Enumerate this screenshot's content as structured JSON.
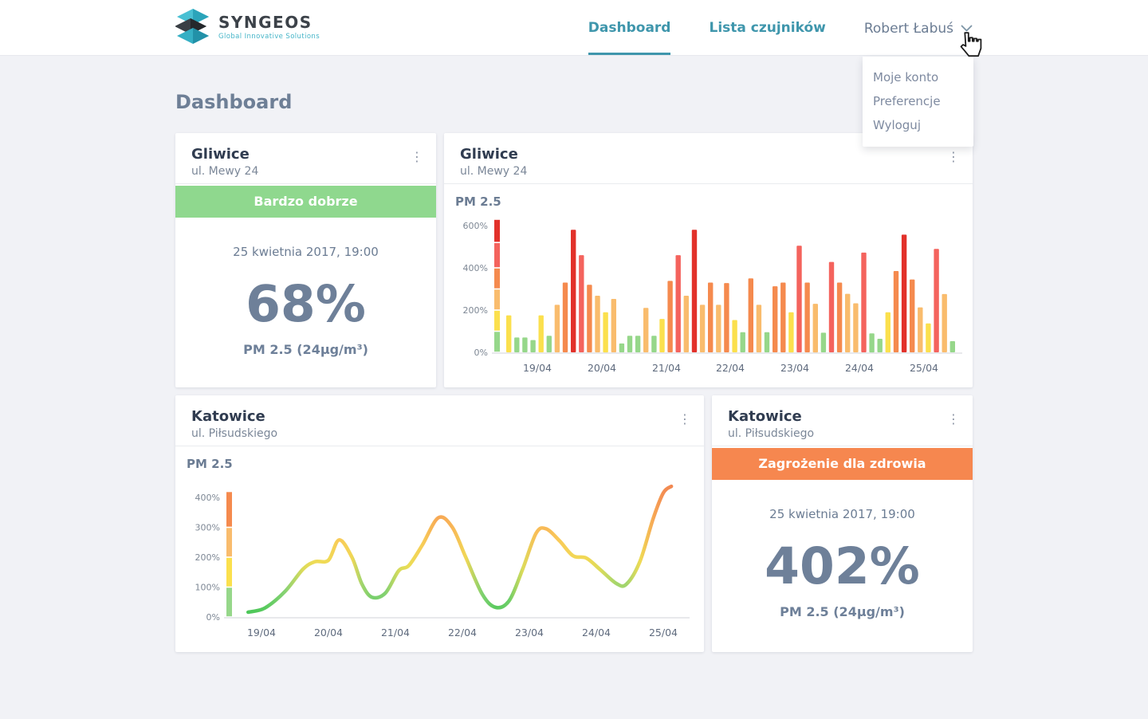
{
  "brand": {
    "name": "SYNGEOS",
    "tagline": "Global Innovative Solutions"
  },
  "nav": {
    "items": [
      {
        "label": "Dashboard",
        "active": true
      },
      {
        "label": "Lista czujników",
        "active": false
      }
    ],
    "user": {
      "name": "Robert Łabuś"
    },
    "user_menu": [
      "Moje konto",
      "Preferencje",
      "Wyloguj"
    ]
  },
  "page": {
    "title": "Dashboard"
  },
  "colors": {
    "accent_teal": "#3f96ac",
    "badge_good": "#8fd88e",
    "badge_danger": "#f6874f",
    "scale": {
      "green": "#96d78a",
      "yellow": "#fbe04d",
      "amber": "#f9bc6d",
      "orange": "#f58a4e",
      "salmon": "#f4635d",
      "red": "#e2312a"
    },
    "line_value_gradient": [
      [
        0,
        "#3fc553"
      ],
      [
        90,
        "#8bd375"
      ],
      [
        175,
        "#eedd54"
      ],
      [
        255,
        "#f9cb59"
      ],
      [
        335,
        "#f7a655"
      ],
      [
        437,
        "#f28851"
      ]
    ]
  },
  "cards": {
    "summary1": {
      "city": "Gliwice",
      "street": "ul. Mewy 24",
      "status": "Bardzo dobrze",
      "status_level": "good",
      "date": "25 kwietnia 2017, 19:00",
      "value": "68%",
      "metric": "PM 2.5 (24µg/m³)"
    },
    "bar_card": {
      "city": "Gliwice",
      "street": "ul. Mewy 24",
      "metric_label": "PM 2.5"
    },
    "line_card": {
      "city": "Katowice",
      "street": "ul. Piłsudskiego",
      "metric_label": "PM 2.5"
    },
    "summary2": {
      "city": "Katowice",
      "street": "ul. Piłsudskiego",
      "status": "Zagrożenie dla zdrowia",
      "status_level": "danger",
      "date": "25 kwietnia 2017, 19:00",
      "value": "402%",
      "metric": "PM 2.5 (24µg/m³)"
    }
  },
  "chart_data": [
    {
      "type": "bar",
      "title": "PM 2.5",
      "location": "Gliwice, ul. Mewy 24",
      "unit": "% of norm",
      "ylim": [
        0,
        630
      ],
      "yticks": [
        0,
        200,
        400,
        600
      ],
      "grid": false,
      "x_dates": [
        "19/04",
        "20/04",
        "21/04",
        "22/04",
        "23/04",
        "24/04",
        "25/04"
      ],
      "thresholds": [
        100,
        200,
        300,
        400,
        520
      ],
      "threshold_colors": [
        "green",
        "yellow",
        "amber",
        "orange",
        "salmon",
        "red"
      ],
      "values_by_day": [
        [
          175,
          70,
          70,
          58,
          175,
          78,
          225,
          330
        ],
        [
          580,
          460,
          320,
          268,
          190,
          253,
          42,
          78
        ],
        [
          78,
          210,
          78,
          158,
          338,
          460,
          268,
          580
        ],
        [
          225,
          330,
          225,
          328,
          153,
          95,
          350,
          225
        ],
        [
          95,
          313,
          330,
          190,
          505,
          330,
          230,
          93
        ],
        [
          428,
          330,
          277,
          232,
          472,
          90,
          64,
          190
        ],
        [
          385,
          557,
          345,
          213,
          137,
          490,
          276,
          53
        ]
      ]
    },
    {
      "type": "line",
      "title": "PM 2.5",
      "location": "Katowice, ul. Piłsudskiego",
      "unit": "% of norm",
      "ylim": [
        0,
        420
      ],
      "yticks": [
        0,
        100,
        200,
        300,
        400
      ],
      "grid": false,
      "x_dates": [
        "19/04",
        "20/04",
        "21/04",
        "22/04",
        "23/04",
        "24/04",
        "25/04"
      ],
      "thresholds": [
        100,
        200,
        300
      ],
      "threshold_colors": [
        "green",
        "yellow",
        "amber",
        "orange"
      ],
      "points": [
        [
          -0.2,
          16
        ],
        [
          0.05,
          30
        ],
        [
          0.35,
          85
        ],
        [
          0.62,
          160
        ],
        [
          0.8,
          185
        ],
        [
          1.0,
          190
        ],
        [
          1.16,
          258
        ],
        [
          1.35,
          200
        ],
        [
          1.5,
          110
        ],
        [
          1.65,
          66
        ],
        [
          1.85,
          80
        ],
        [
          2.05,
          155
        ],
        [
          2.2,
          172
        ],
        [
          2.4,
          240
        ],
        [
          2.64,
          332
        ],
        [
          2.85,
          300
        ],
        [
          3.05,
          200
        ],
        [
          3.3,
          75
        ],
        [
          3.5,
          32
        ],
        [
          3.7,
          55
        ],
        [
          3.9,
          160
        ],
        [
          4.1,
          280
        ],
        [
          4.25,
          295
        ],
        [
          4.45,
          255
        ],
        [
          4.65,
          205
        ],
        [
          4.85,
          197
        ],
        [
          5.05,
          160
        ],
        [
          5.3,
          112
        ],
        [
          5.45,
          110
        ],
        [
          5.65,
          185
        ],
        [
          5.85,
          330
        ],
        [
          6.0,
          415
        ],
        [
          6.12,
          437
        ]
      ]
    }
  ]
}
